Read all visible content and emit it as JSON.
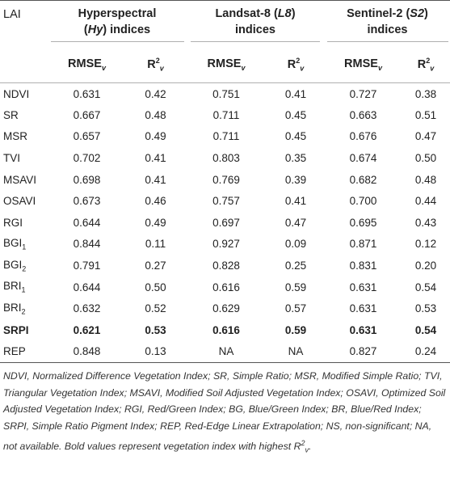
{
  "table": {
    "corner_label": "LAI",
    "groups": [
      {
        "line1": "Hyperspectral",
        "line2_pre": "(",
        "line2_it": "Hy",
        "line2_post": ") indices"
      },
      {
        "line1_pre": "Landsat-8 (",
        "line1_it": "L8",
        "line1_post": ")",
        "line2": "indices"
      },
      {
        "line1_pre": "Sentinel-2 (",
        "line1_it": "S2",
        "line1_post": ")",
        "line2": "indices"
      }
    ],
    "sub_headers": {
      "rmse": "RMSE",
      "rmse_sub": "v",
      "r2": "R",
      "r2_sup": "2",
      "r2_sub": "v"
    },
    "rows": [
      {
        "name": "NDVI",
        "sub": "",
        "v": [
          "0.631",
          "0.42",
          "0.751",
          "0.41",
          "0.727",
          "0.38"
        ]
      },
      {
        "name": "SR",
        "sub": "",
        "v": [
          "0.667",
          "0.48",
          "0.711",
          "0.45",
          "0.663",
          "0.51"
        ]
      },
      {
        "name": "MSR",
        "sub": "",
        "v": [
          "0.657",
          "0.49",
          "0.711",
          "0.45",
          "0.676",
          "0.47"
        ]
      },
      {
        "name": "TVI",
        "sub": "",
        "v": [
          "0.702",
          "0.41",
          "0.803",
          "0.35",
          "0.674",
          "0.50"
        ]
      },
      {
        "name": "MSAVI",
        "sub": "",
        "v": [
          "0.698",
          "0.41",
          "0.769",
          "0.39",
          "0.682",
          "0.48"
        ]
      },
      {
        "name": "OSAVI",
        "sub": "",
        "v": [
          "0.673",
          "0.46",
          "0.757",
          "0.41",
          "0.700",
          "0.44"
        ]
      },
      {
        "name": "RGI",
        "sub": "",
        "v": [
          "0.644",
          "0.49",
          "0.697",
          "0.47",
          "0.695",
          "0.43"
        ]
      },
      {
        "name": "BGI",
        "sub": "1",
        "v": [
          "0.844",
          "0.11",
          "0.927",
          "0.09",
          "0.871",
          "0.12"
        ]
      },
      {
        "name": "BGI",
        "sub": "2",
        "v": [
          "0.791",
          "0.27",
          "0.828",
          "0.25",
          "0.831",
          "0.20"
        ]
      },
      {
        "name": "BRI",
        "sub": "1",
        "v": [
          "0.644",
          "0.50",
          "0.616",
          "0.59",
          "0.631",
          "0.54"
        ]
      },
      {
        "name": "BRI",
        "sub": "2",
        "v": [
          "0.632",
          "0.52",
          "0.629",
          "0.57",
          "0.631",
          "0.53"
        ]
      },
      {
        "name": "SRPI",
        "sub": "",
        "bold": true,
        "v": [
          "0.621",
          "0.53",
          "0.616",
          "0.59",
          "0.631",
          "0.54"
        ]
      },
      {
        "name": "REP",
        "sub": "",
        "v": [
          "0.848",
          "0.13",
          "NA",
          "NA",
          "0.827",
          "0.24"
        ]
      }
    ]
  },
  "footnote": {
    "main": "NDVI, Normalized Difference Vegetation Index; SR, Simple Ratio; MSR, Modified Simple Ratio; TVI, Triangular Vegetation Index; MSAVI, Modified Soil Adjusted Vegetation Index; OSAVI, Optimized Soil Adjusted Vegetation Index; RGI, Red/Green Index; BG, Blue/Green Index; BR, Blue/Red Index; SRPI, Simple Ratio Pigment Index; REP, Red-Edge Linear Extrapolation; NS, non-significant; NA, not available. Bold values represent vegetation index with highest R",
    "sup": "2",
    "sub": "v",
    "end": "."
  }
}
